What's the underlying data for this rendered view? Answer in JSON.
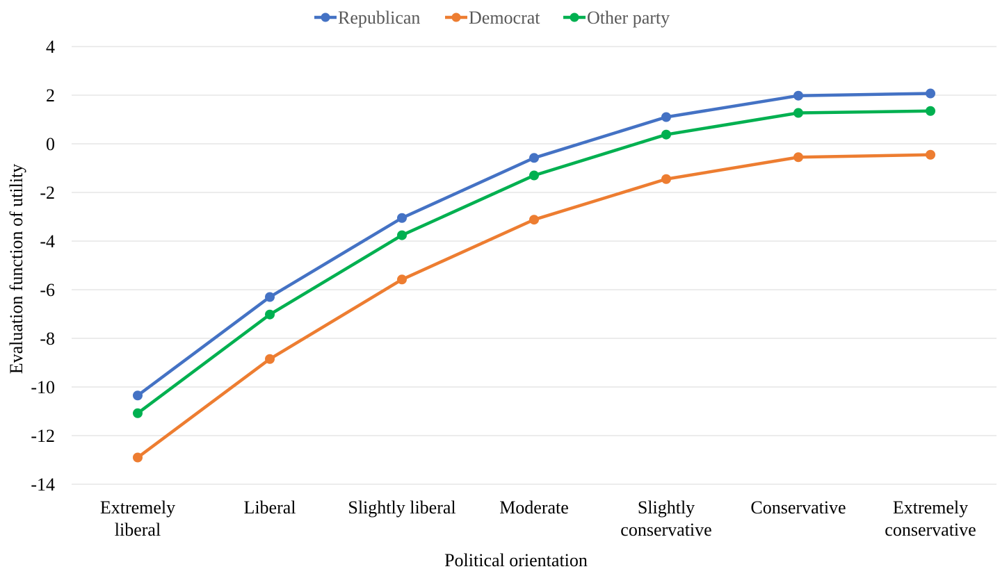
{
  "chart_data": {
    "type": "line",
    "title": "",
    "xlabel": "Political orientation",
    "ylabel": "Evaluation function of utility",
    "ylim": [
      -14,
      4
    ],
    "yticks": [
      4,
      2,
      0,
      -2,
      -4,
      -6,
      -8,
      -10,
      -12,
      -14
    ],
    "grid": true,
    "legend_position": "top",
    "categories": [
      [
        "Extremely",
        "liberal"
      ],
      [
        "Liberal"
      ],
      [
        "Slightly liberal"
      ],
      [
        "Moderate"
      ],
      [
        "Slightly",
        "conservative"
      ],
      [
        "Conservative"
      ],
      [
        "Extremely",
        "conservative"
      ]
    ],
    "series": [
      {
        "name": "Republican",
        "color": "#4472c4",
        "values": [
          -10.35,
          -6.3,
          -3.05,
          -0.58,
          1.1,
          1.98,
          2.07
        ]
      },
      {
        "name": "Democrat",
        "color": "#ed7d31",
        "values": [
          -12.9,
          -8.85,
          -5.58,
          -3.12,
          -1.45,
          -0.55,
          -0.45
        ]
      },
      {
        "name": "Other party",
        "color": "#00b050",
        "values": [
          -11.08,
          -7.02,
          -3.76,
          -1.3,
          0.38,
          1.27,
          1.35
        ]
      }
    ]
  }
}
